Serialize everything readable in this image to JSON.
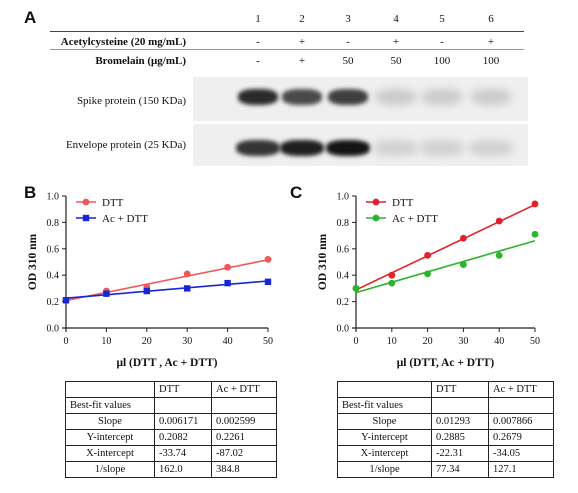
{
  "panelA": {
    "letter": "A",
    "lanes": [
      "1",
      "2",
      "3",
      "4",
      "5",
      "6"
    ],
    "treatments": [
      {
        "label": "Acetylcysteine (20 mg/mL)",
        "values": [
          "-",
          "+",
          "-",
          "+",
          "-",
          "+"
        ]
      },
      {
        "label": "Bromelain (μg/mL)",
        "values": [
          "-",
          "+",
          "50",
          "50",
          "100",
          "100"
        ]
      }
    ],
    "bands": [
      {
        "label": "Spike protein (150 KDa)",
        "intensity": [
          0.9,
          0.75,
          0.8,
          0.15,
          0.15,
          0.15
        ]
      },
      {
        "label": "Envelope protein  (25 KDa)",
        "intensity": [
          0.85,
          0.95,
          1.0,
          0.12,
          0.12,
          0.12
        ]
      }
    ]
  },
  "panelB": {
    "letter": "B",
    "chart_data": {
      "type": "scatter",
      "xlabel": "μl (DTT , Ac + DTT)",
      "ylabel": "OD 310 nm",
      "xlim": [
        0,
        50
      ],
      "ylim": [
        0.0,
        1.0
      ],
      "xticks": [
        "0",
        "10",
        "20",
        "30",
        "40",
        "50"
      ],
      "yticks": [
        "0.0",
        "0.2",
        "0.4",
        "0.6",
        "0.8",
        "1.0"
      ],
      "legend_position": "top-left",
      "series": [
        {
          "name": "DTT",
          "color": "#f0575a",
          "marker": "circle",
          "x": [
            0,
            10,
            20,
            30,
            40,
            50
          ],
          "y": [
            0.21,
            0.28,
            0.31,
            0.41,
            0.46,
            0.52
          ],
          "fit": {
            "slope": 0.006171,
            "intercept": 0.2082
          }
        },
        {
          "name": "Ac + DTT",
          "color": "#1727d6",
          "marker": "square",
          "x": [
            0,
            10,
            20,
            30,
            40,
            50
          ],
          "y": [
            0.21,
            0.26,
            0.28,
            0.3,
            0.34,
            0.35
          ],
          "fit": {
            "slope": 0.002599,
            "intercept": 0.2261
          }
        }
      ]
    },
    "table": {
      "header": [
        "",
        "DTT",
        "Ac + DTT"
      ],
      "rows": [
        [
          "Best-fit values",
          "",
          ""
        ],
        [
          "Slope",
          "0.006171",
          "0.002599"
        ],
        [
          "Y-intercept",
          "0.2082",
          "0.2261"
        ],
        [
          "X-intercept",
          "-33.74",
          "-87.02"
        ],
        [
          "1/slope",
          "162.0",
          "384.8"
        ]
      ]
    }
  },
  "panelC": {
    "letter": "C",
    "chart_data": {
      "type": "scatter",
      "xlabel": "μl (DTT, Ac + DTT)",
      "ylabel": "OD 310 nm",
      "xlim": [
        0,
        50
      ],
      "ylim": [
        0.0,
        1.0
      ],
      "xticks": [
        "0",
        "10",
        "20",
        "30",
        "40",
        "50"
      ],
      "yticks": [
        "0.0",
        "0.2",
        "0.4",
        "0.6",
        "0.8",
        "1.0"
      ],
      "legend_position": "top-left",
      "series": [
        {
          "name": "DTT",
          "color": "#e3212a",
          "marker": "circle",
          "x": [
            0,
            10,
            20,
            30,
            40,
            50
          ],
          "y": [
            0.3,
            0.4,
            0.55,
            0.68,
            0.81,
            0.94
          ],
          "fit": {
            "slope": 0.01293,
            "intercept": 0.2885
          }
        },
        {
          "name": "Ac + DTT",
          "color": "#2bb52b",
          "marker": "circle",
          "x": [
            0,
            10,
            20,
            30,
            40,
            50
          ],
          "y": [
            0.3,
            0.34,
            0.41,
            0.48,
            0.55,
            0.71
          ],
          "fit": {
            "slope": 0.007866,
            "intercept": 0.2679
          }
        }
      ]
    },
    "table": {
      "header": [
        "",
        "DTT",
        "Ac + DTT"
      ],
      "rows": [
        [
          "Best-fit values",
          "",
          ""
        ],
        [
          "Slope",
          "0.01293",
          "0.007866"
        ],
        [
          "Y-intercept",
          "0.2885",
          "0.2679"
        ],
        [
          "X-intercept",
          "-22.31",
          "-34.05"
        ],
        [
          "1/slope",
          "77.34",
          "127.1"
        ]
      ]
    }
  }
}
